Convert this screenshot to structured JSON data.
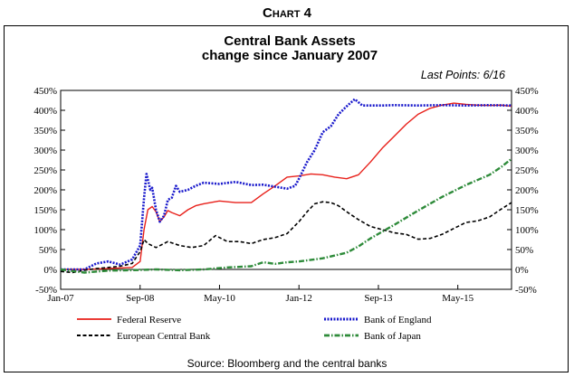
{
  "heading": "Chart 4",
  "footer": {
    "source": "Source: Bloomberg and the central banks"
  },
  "chart_data": {
    "type": "line",
    "title": "Central Bank Assets",
    "subtitle": "change since January 2007",
    "annotation": "Last Points: 6/16",
    "ylim": [
      -50,
      450
    ],
    "y_ticks": [
      -50,
      0,
      50,
      100,
      150,
      200,
      250,
      300,
      350,
      400,
      450
    ],
    "y_tick_labels": [
      "-50%",
      "0%",
      "50%",
      "100%",
      "150%",
      "200%",
      "250%",
      "300%",
      "350%",
      "400%",
      "450%"
    ],
    "y_axis_sides": "both",
    "x_tick_labels": [
      "Jan-07",
      "Sep-08",
      "May-10",
      "Jan-12",
      "Sep-13",
      "May-15"
    ],
    "x_tick_positions": [
      2007.0,
      2008.667,
      2010.333,
      2012.0,
      2013.667,
      2015.333
    ],
    "xlim": [
      2007.0,
      2016.46
    ],
    "grid": false,
    "legend_position": "bottom",
    "series": [
      {
        "name": "Federal Reserve",
        "color": "#e8201a",
        "style": "solid",
        "x": [
          2007.0,
          2007.5,
          2008.0,
          2008.5,
          2008.667,
          2008.75,
          2008.83,
          2008.92,
          2009.0,
          2009.08,
          2009.17,
          2009.25,
          2009.33,
          2009.5,
          2009.67,
          2009.83,
          2010.0,
          2010.33,
          2010.67,
          2011.0,
          2011.25,
          2011.5,
          2011.75,
          2012.0,
          2012.25,
          2012.5,
          2012.75,
          2013.0,
          2013.25,
          2013.5,
          2013.75,
          2014.0,
          2014.25,
          2014.5,
          2014.75,
          2015.0,
          2015.25,
          2015.5,
          2015.75,
          2016.0,
          2016.25,
          2016.46
        ],
        "values": [
          0,
          0,
          2,
          5,
          20,
          100,
          150,
          158,
          145,
          120,
          132,
          148,
          143,
          135,
          150,
          160,
          165,
          172,
          168,
          168,
          190,
          210,
          232,
          235,
          240,
          238,
          232,
          228,
          238,
          270,
          305,
          335,
          365,
          390,
          405,
          413,
          418,
          415,
          413,
          412,
          413,
          410
        ]
      },
      {
        "name": "Bank of England",
        "color": "#1a1acc",
        "style": "dotted",
        "x": [
          2007.0,
          2007.5,
          2007.75,
          2008.0,
          2008.25,
          2008.5,
          2008.667,
          2008.75,
          2008.8,
          2008.88,
          2008.92,
          2009.0,
          2009.08,
          2009.17,
          2009.25,
          2009.33,
          2009.42,
          2009.5,
          2009.67,
          2009.83,
          2010.0,
          2010.33,
          2010.67,
          2011.0,
          2011.25,
          2011.5,
          2011.75,
          2011.92,
          2012.0,
          2012.17,
          2012.33,
          2012.5,
          2012.67,
          2012.83,
          2013.0,
          2013.17,
          2013.33,
          2013.5,
          2013.75,
          2014.0,
          2014.5,
          2015.0,
          2015.5,
          2016.0,
          2016.46
        ],
        "values": [
          0,
          0,
          15,
          20,
          12,
          25,
          60,
          180,
          240,
          200,
          205,
          150,
          120,
          135,
          175,
          180,
          210,
          195,
          200,
          210,
          218,
          215,
          220,
          212,
          213,
          208,
          203,
          210,
          228,
          270,
          300,
          345,
          360,
          390,
          410,
          428,
          412,
          412,
          412,
          413,
          412,
          413,
          412,
          413,
          412
        ]
      },
      {
        "name": "European Central Bank",
        "color": "#000000",
        "style": "dashed",
        "x": [
          2007.0,
          2007.25,
          2007.5,
          2007.75,
          2008.0,
          2008.25,
          2008.5,
          2008.67,
          2008.75,
          2008.83,
          2009.0,
          2009.25,
          2009.5,
          2009.75,
          2010.0,
          2010.25,
          2010.5,
          2010.75,
          2011.0,
          2011.25,
          2011.5,
          2011.75,
          2012.0,
          2012.17,
          2012.33,
          2012.5,
          2012.67,
          2012.83,
          2013.0,
          2013.25,
          2013.5,
          2013.75,
          2014.0,
          2014.25,
          2014.5,
          2014.75,
          2015.0,
          2015.25,
          2015.5,
          2015.75,
          2016.0,
          2016.25,
          2016.46
        ],
        "values": [
          -5,
          -8,
          -2,
          2,
          5,
          8,
          15,
          45,
          75,
          65,
          55,
          70,
          60,
          55,
          60,
          85,
          70,
          70,
          65,
          75,
          80,
          90,
          120,
          145,
          165,
          170,
          168,
          160,
          145,
          125,
          108,
          100,
          92,
          88,
          76,
          78,
          88,
          103,
          118,
          122,
          132,
          152,
          168
        ]
      },
      {
        "name": "Bank of Japan",
        "color": "#2e8b3a",
        "style": "dashdot",
        "x": [
          2007.0,
          2007.5,
          2008.0,
          2008.5,
          2009.0,
          2009.5,
          2010.0,
          2010.5,
          2011.0,
          2011.25,
          2011.5,
          2011.75,
          2012.0,
          2012.5,
          2013.0,
          2013.25,
          2013.5,
          2013.75,
          2014.0,
          2014.5,
          2015.0,
          2015.5,
          2016.0,
          2016.25,
          2016.46
        ],
        "values": [
          0,
          -8,
          -3,
          -2,
          0,
          -2,
          0,
          5,
          8,
          18,
          14,
          18,
          20,
          28,
          42,
          58,
          78,
          95,
          112,
          148,
          182,
          212,
          238,
          258,
          278
        ]
      }
    ]
  }
}
